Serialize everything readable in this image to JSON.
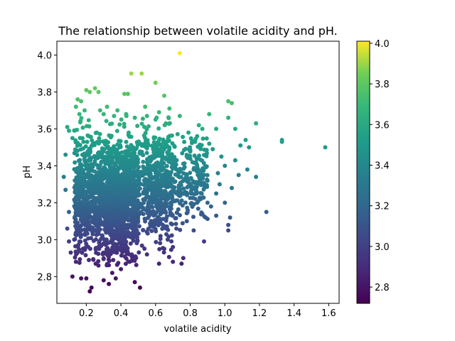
{
  "chart_data": {
    "type": "scatter",
    "title": "The relationship between volatile acidity and pH.",
    "xlabel": "volatile acidity",
    "ylabel": "pH",
    "xlim": [
      0.03,
      1.66
    ],
    "ylim": [
      2.655,
      4.075
    ],
    "xticks": [
      0.2,
      0.4,
      0.6,
      0.8,
      1.0,
      1.2,
      1.4,
      1.6
    ],
    "xtick_labels": [
      "0.2",
      "0.4",
      "0.6",
      "0.8",
      "1.0",
      "1.2",
      "1.4",
      "1.6"
    ],
    "yticks": [
      2.8,
      3.0,
      3.2,
      3.4,
      3.6,
      3.8,
      4.0
    ],
    "ytick_labels": [
      "2.8",
      "3.0",
      "3.2",
      "3.4",
      "3.6",
      "3.8",
      "4.0"
    ],
    "grid": false,
    "colormap": "viridis",
    "color_by": "pH",
    "colorbar": {
      "range": [
        2.72,
        4.01
      ],
      "ticks": [
        2.8,
        3.0,
        3.2,
        3.4,
        3.6,
        3.8,
        4.0
      ],
      "tick_labels": [
        "2.8",
        "3.0",
        "3.2",
        "3.4",
        "3.6",
        "3.8",
        "4.0"
      ]
    },
    "points": [
      [
        0.74,
        4.01
      ],
      [
        0.46,
        3.9
      ],
      [
        0.52,
        3.9
      ],
      [
        0.6,
        3.85
      ],
      [
        0.25,
        3.82
      ],
      [
        0.2,
        3.81
      ],
      [
        0.42,
        3.79
      ],
      [
        0.44,
        3.79
      ],
      [
        0.65,
        3.78
      ],
      [
        0.27,
        3.8
      ],
      [
        0.22,
        3.8
      ],
      [
        0.15,
        3.76
      ],
      [
        0.32,
        3.72
      ],
      [
        0.38,
        3.7
      ],
      [
        0.54,
        3.72
      ],
      [
        0.68,
        3.71
      ],
      [
        0.62,
        3.69
      ],
      [
        0.74,
        3.67
      ],
      [
        0.91,
        3.68
      ],
      [
        1.02,
        3.75
      ],
      [
        1.04,
        3.74
      ],
      [
        1.02,
        3.66
      ],
      [
        1.18,
        3.63
      ],
      [
        0.85,
        3.62
      ],
      [
        1.33,
        3.54
      ],
      [
        1.33,
        3.53
      ],
      [
        1.58,
        3.5
      ],
      [
        1.12,
        3.54
      ],
      [
        1.14,
        3.5
      ],
      [
        1.09,
        3.51
      ],
      [
        1.06,
        3.6
      ],
      [
        0.95,
        3.6
      ],
      [
        0.08,
        3.46
      ],
      [
        0.07,
        3.34
      ],
      [
        0.09,
        3.61
      ],
      [
        0.1,
        3.59
      ],
      [
        0.12,
        3.55
      ],
      [
        0.08,
        3.27
      ],
      [
        0.1,
        3.15
      ],
      [
        0.09,
        3.06
      ],
      [
        0.1,
        2.99
      ],
      [
        0.11,
        2.93
      ],
      [
        0.12,
        2.8
      ],
      [
        0.17,
        2.79
      ],
      [
        0.2,
        2.79
      ],
      [
        0.22,
        2.72
      ],
      [
        0.23,
        2.74
      ],
      [
        0.3,
        2.78
      ],
      [
        0.33,
        2.76
      ],
      [
        0.37,
        2.79
      ],
      [
        0.48,
        2.77
      ],
      [
        0.51,
        2.74
      ],
      [
        0.7,
        2.88
      ],
      [
        0.75,
        2.87
      ],
      [
        0.76,
        2.9
      ],
      [
        0.62,
        2.87
      ],
      [
        0.65,
        2.95
      ],
      [
        0.67,
        3.0
      ],
      [
        0.82,
        3.05
      ],
      [
        0.88,
        2.99
      ],
      [
        1.02,
        3.05
      ],
      [
        1.02,
        3.08
      ],
      [
        1.03,
        3.12
      ],
      [
        1.24,
        3.15
      ],
      [
        1.0,
        3.2
      ],
      [
        0.9,
        3.2
      ],
      [
        0.95,
        3.25
      ],
      [
        0.97,
        3.3
      ],
      [
        1.08,
        3.35
      ],
      [
        1.18,
        3.34
      ],
      [
        1.13,
        3.38
      ],
      [
        1.0,
        3.4
      ],
      [
        0.98,
        3.45
      ],
      [
        0.93,
        3.49
      ],
      [
        0.91,
        3.52
      ],
      [
        0.84,
        3.56
      ],
      [
        0.87,
        3.6
      ],
      [
        0.79,
        3.58
      ],
      [
        0.9,
        3.32
      ],
      [
        0.96,
        3.36
      ],
      [
        0.86,
        3.22
      ],
      [
        0.87,
        3.14
      ],
      [
        0.78,
        3.1
      ],
      [
        0.72,
        3.06
      ],
      [
        0.7,
        2.96
      ],
      [
        0.55,
        2.92
      ],
      [
        0.45,
        2.88
      ],
      [
        0.4,
        2.84
      ],
      [
        0.35,
        2.82
      ],
      [
        0.27,
        2.86
      ],
      [
        0.14,
        2.88
      ],
      [
        0.13,
        3.0
      ],
      [
        0.78,
        3.45
      ],
      [
        0.82,
        3.38
      ],
      [
        0.84,
        3.3
      ],
      [
        0.84,
        3.2
      ],
      [
        0.6,
        3.65
      ],
      [
        0.66,
        3.63
      ],
      [
        0.55,
        3.67
      ],
      [
        0.48,
        3.66
      ],
      [
        0.43,
        3.68
      ],
      [
        0.36,
        3.67
      ],
      [
        0.3,
        3.68
      ],
      [
        0.28,
        3.7
      ],
      [
        0.19,
        3.7
      ],
      [
        0.16,
        3.68
      ],
      [
        0.14,
        3.72
      ],
      [
        0.17,
        3.75
      ],
      [
        1.06,
        3.43
      ],
      [
        1.04,
        3.28
      ],
      [
        0.95,
        3.13
      ],
      [
        0.92,
        3.18
      ]
    ]
  }
}
